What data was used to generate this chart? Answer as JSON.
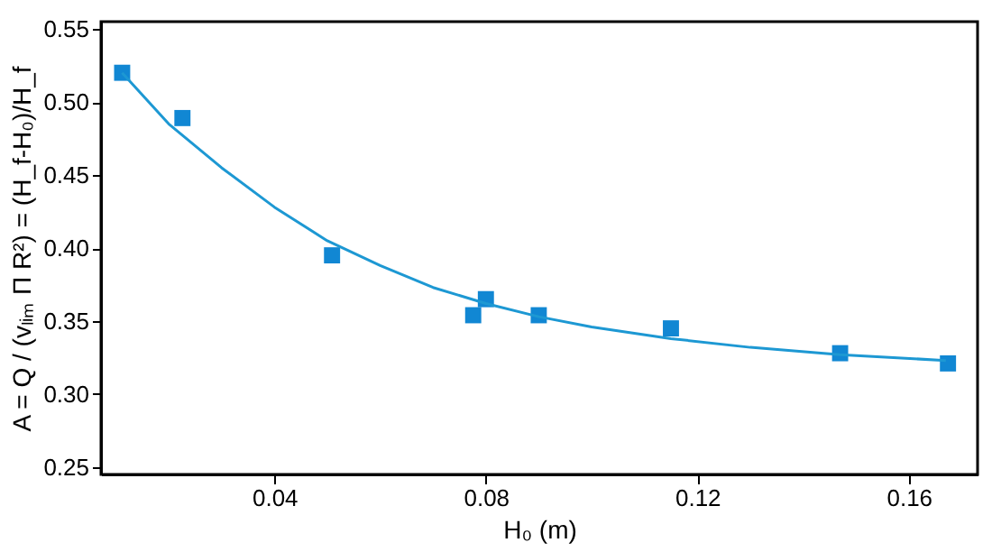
{
  "chart_data": {
    "type": "scatter",
    "xlabel": "H₀ (m)",
    "ylabel": "A = Q / (vₗᵢₘ Π R²) = (H_f-H₀)/H_f",
    "x": [
      0.0112,
      0.0226,
      0.0509,
      0.0776,
      0.08,
      0.09,
      0.115,
      0.147,
      0.1674
    ],
    "series": [
      {
        "color": "#1187d3",
        "marker": "square",
        "values": [
          0.52,
          0.489,
          0.395,
          0.354,
          0.365,
          0.354,
          0.345,
          0.328,
          0.321
        ]
      },
      {
        "type": "line",
        "color": "#1d98d3",
        "marker": "none",
        "line_style": "solid",
        "x": [
          0.0112,
          0.02,
          0.03,
          0.04,
          0.05,
          0.06,
          0.07,
          0.08,
          0.09,
          0.1,
          0.115,
          0.13,
          0.147,
          0.167
        ],
        "values": [
          0.52,
          0.485,
          0.455,
          0.428,
          0.405,
          0.388,
          0.373,
          0.362,
          0.353,
          0.346,
          0.338,
          0.332,
          0.327,
          0.323
        ]
      }
    ],
    "xlim": [
      0.0072,
      0.173
    ],
    "ylim": [
      0.245,
      0.555
    ],
    "xticks": [
      0.04,
      0.08,
      0.12,
      0.16
    ],
    "yticks": [
      0.25,
      {
        "value": 0.3,
        "label": "0.30"
      },
      0.35,
      {
        "value": 0.4,
        "label": "0.40"
      },
      0.45,
      {
        "value": 0.5,
        "label": "0.50"
      },
      0.55
    ],
    "grid": false
  }
}
